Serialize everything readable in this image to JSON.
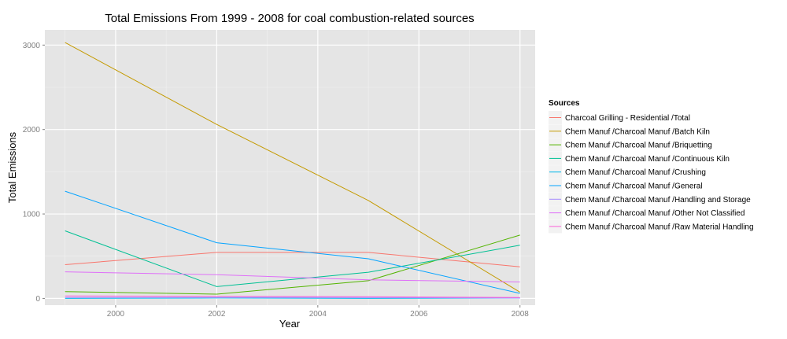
{
  "chart_data": {
    "type": "line",
    "title": "Total Emissions From 1999 - 2008 for coal combustion-related sources",
    "xlabel": "Year",
    "ylabel": "Total Emissions",
    "xlim": [
      1998.6,
      2008.3
    ],
    "ylim": [
      -80,
      3180
    ],
    "x_ticks": [
      2000,
      2002,
      2004,
      2006,
      2008
    ],
    "y_ticks": [
      0,
      1000,
      2000,
      3000
    ],
    "grid": true,
    "legend": {
      "title": "Sources",
      "placement": "right"
    },
    "x": [
      1999,
      2002,
      2005,
      2008
    ],
    "series": [
      {
        "name": "Charcoal Grilling - Residential /Total",
        "color": "#F8766D",
        "values": [
          400,
          545,
          545,
          375
        ]
      },
      {
        "name": "Chem Manuf /Charcoal Manuf /Batch Kiln",
        "color": "#C49A00",
        "values": [
          3030,
          2060,
          1160,
          75
        ]
      },
      {
        "name": "Chem Manuf /Charcoal Manuf /Briquetting",
        "color": "#53B400",
        "values": [
          80,
          50,
          210,
          750
        ]
      },
      {
        "name": "Chem Manuf /Charcoal Manuf /Continuous Kiln",
        "color": "#00C094",
        "values": [
          800,
          140,
          310,
          630
        ]
      },
      {
        "name": "Chem Manuf /Charcoal Manuf /Crushing",
        "color": "#00B6EB",
        "values": [
          0,
          5,
          0,
          5
        ]
      },
      {
        "name": "Chem Manuf /Charcoal Manuf /General",
        "color": "#06A4FF",
        "values": [
          1270,
          660,
          470,
          60
        ]
      },
      {
        "name": "Chem Manuf /Charcoal Manuf /Handling and Storage",
        "color": "#A58AFF",
        "values": [
          10,
          10,
          10,
          5
        ]
      },
      {
        "name": "Chem Manuf /Charcoal Manuf /Other Not Classified",
        "color": "#DF70F8",
        "values": [
          315,
          280,
          220,
          195
        ]
      },
      {
        "name": "Chem Manuf /Charcoal Manuf /Raw Material Handling",
        "color": "#FB61D7",
        "values": [
          30,
          25,
          20,
          10
        ]
      }
    ]
  }
}
